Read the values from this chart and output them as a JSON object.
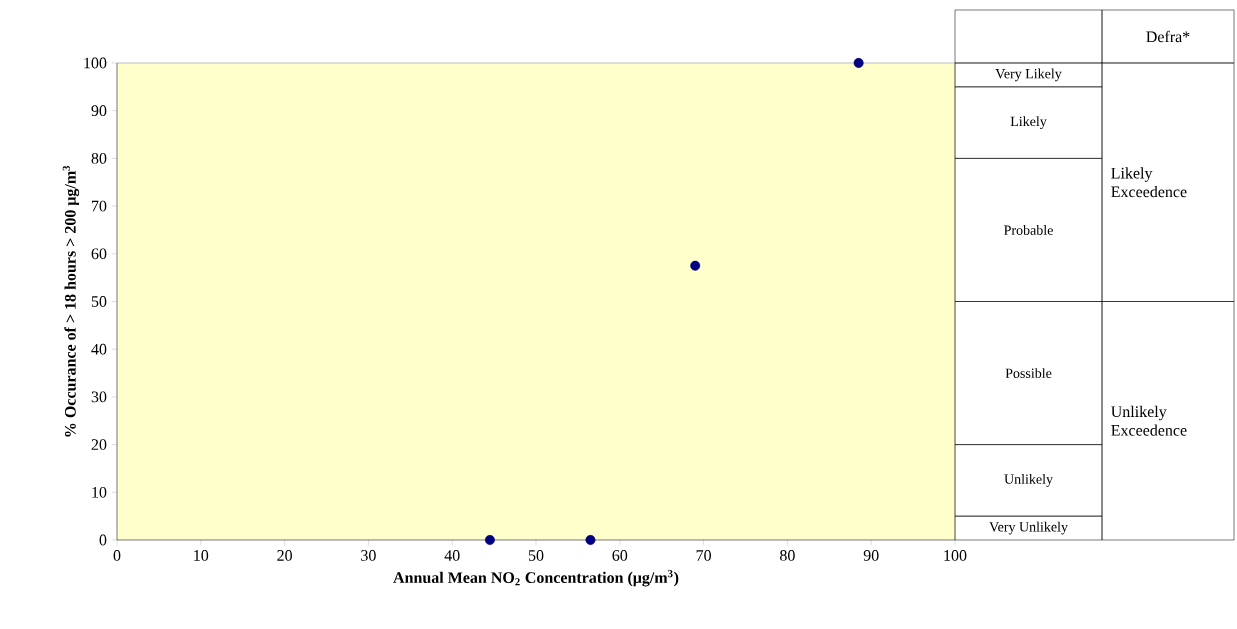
{
  "chart_data": [
    {
      "type": "scatter",
      "xlabel": "**Annual Mean NO$_{2}$ Concentration (μg/m$^{3}$)**",
      "ylabel": "**% Occurance of  > 18 hours > 200  μg/m$^{3}$**",
      "series": [
        {
          "color": "#000080",
          "x": [
            44.5,
            56.5,
            69,
            88.5
          ],
          "values": [
            0,
            0,
            57.5,
            100
          ]
        }
      ],
      "marker": "circle",
      "xlim": [
        0,
        100
      ],
      "xticks": [
        0,
        10,
        20,
        30,
        40,
        50,
        60,
        70,
        80,
        90,
        100
      ],
      "ylim": [
        0,
        100
      ],
      "yticks": [
        0,
        10,
        20,
        30,
        40,
        50,
        60,
        70,
        80,
        90,
        100
      ]
    },
    {
      "type": "other",
      "annotations": [
        "Defra*",
        "Very Likely",
        "Likely",
        "Probable",
        "Possible",
        "Unlikely",
        "Very Unlikely",
        "Likely Exceedence",
        "Unlikely Exceedence"
      ]
    }
  ]
}
